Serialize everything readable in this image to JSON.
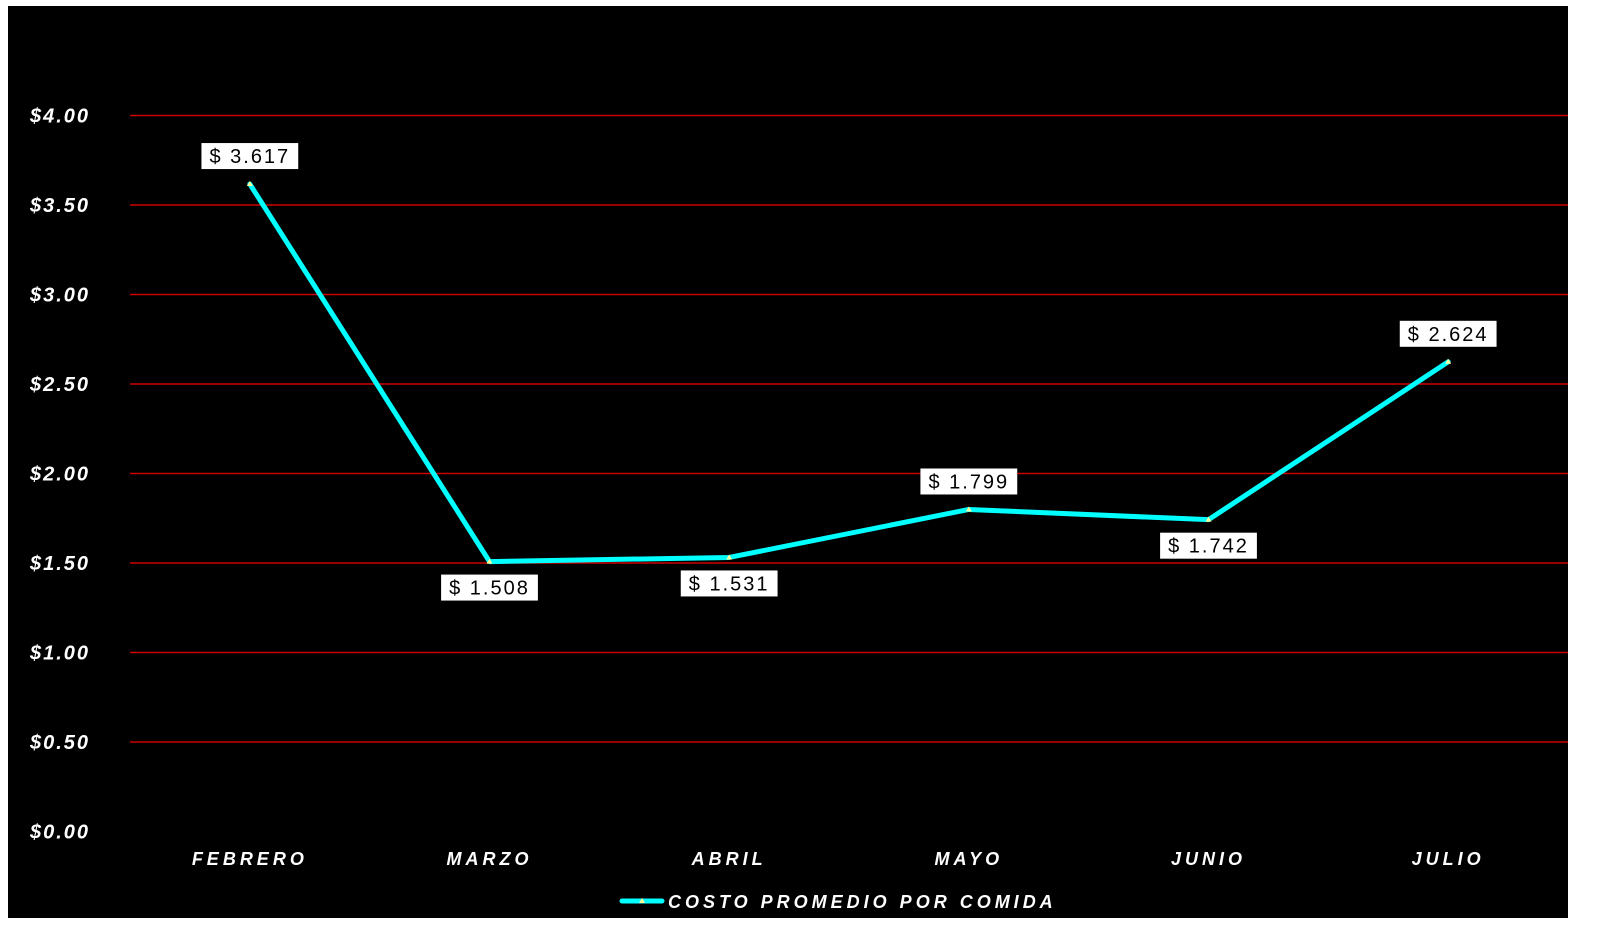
{
  "chart_data": {
    "type": "line",
    "categories": [
      "FEBRERO",
      "MARZO",
      "ABRIL",
      "MAYO",
      "JUNIO",
      "JULIO"
    ],
    "series": [
      {
        "name": "COSTO PROMEDIO POR COMIDA",
        "values": [
          3.617,
          1.508,
          1.531,
          1.799,
          1.742,
          2.624
        ],
        "data_labels": [
          "$ 3.617",
          "$ 1.508",
          "$ 1.531",
          "$ 1.799",
          "$ 1.742",
          "$ 2.624"
        ],
        "label_positions": [
          "above",
          "below",
          "below",
          "above",
          "below",
          "above"
        ],
        "color": "#00ffff",
        "marker_color": "#ffff99"
      }
    ],
    "yticks": [
      0,
      0.5,
      1,
      1.5,
      2,
      2.5,
      3,
      3.5,
      4
    ],
    "ytick_labels": [
      "$0.00",
      "$0.50",
      "$1.00",
      "$1.50",
      "$2.00",
      "$2.50",
      "$3.00",
      "$3.50",
      "$4.00"
    ],
    "ylim": [
      0,
      4.5
    ],
    "title": "",
    "xlabel": "",
    "ylabel": "",
    "grid": true,
    "gridline_color": "#cc0000",
    "background_color": "#000000",
    "text_color": "#ffffff",
    "legend_position": "bottom"
  }
}
